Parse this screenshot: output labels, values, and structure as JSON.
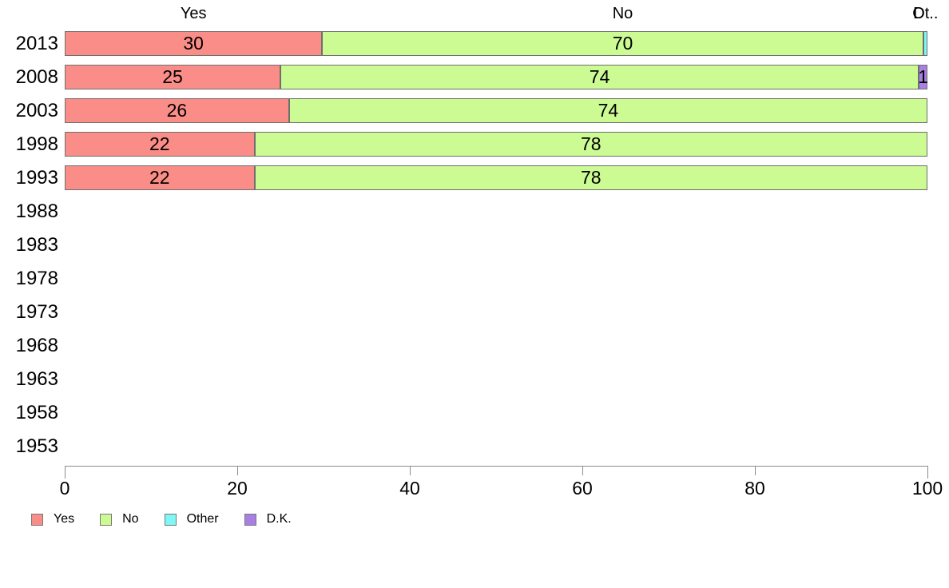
{
  "chart_data": {
    "type": "bar",
    "orientation": "horizontal",
    "stacked": true,
    "title": "",
    "xlabel": "",
    "ylabel": "",
    "xlim": [
      0,
      100
    ],
    "x_ticks": [
      "0",
      "20",
      "40",
      "60",
      "80",
      "100"
    ],
    "grid": false,
    "categories": [
      "2013",
      "2008",
      "2003",
      "1998",
      "1993",
      "1988",
      "1983",
      "1978",
      "1973",
      "1968",
      "1963",
      "1958",
      "1953"
    ],
    "series": [
      {
        "name": "Yes",
        "color": "#fb8d88",
        "values": [
          30,
          25,
          26,
          22,
          22,
          null,
          null,
          null,
          null,
          null,
          null,
          null,
          null
        ],
        "labels": [
          "30",
          "25",
          "26",
          "22",
          "22",
          "",
          "",
          "",
          "",
          "",
          "",
          "",
          ""
        ]
      },
      {
        "name": "No",
        "color": "#ccfb94",
        "values": [
          70,
          74,
          74,
          78,
          78,
          null,
          null,
          null,
          null,
          null,
          null,
          null,
          null
        ],
        "labels": [
          "70",
          "74",
          "74",
          "78",
          "78",
          "",
          "",
          "",
          "",
          "",
          "",
          "",
          ""
        ]
      },
      {
        "name": "Other",
        "color": "#80f6f6",
        "values": [
          0.5,
          0,
          0,
          0,
          0,
          null,
          null,
          null,
          null,
          null,
          null,
          null,
          null
        ],
        "labels": [
          "",
          "",
          "",
          "",
          "",
          "",
          "",
          "",
          "",
          "",
          "",
          "",
          ""
        ]
      },
      {
        "name": "D.K.",
        "color": "#a97fe3",
        "values": [
          0,
          1,
          0,
          0,
          0,
          null,
          null,
          null,
          null,
          null,
          null,
          null,
          null
        ],
        "labels": [
          "",
          "1",
          "",
          "",
          "",
          "",
          "",
          "",
          "",
          "",
          "",
          "",
          ""
        ]
      }
    ],
    "column_headers": [
      {
        "series": "Yes",
        "text": "Yes"
      },
      {
        "series": "No",
        "text": "No"
      },
      {
        "series": "Other",
        "text": "Ot.."
      },
      {
        "series": "D.K.",
        "text": "D"
      }
    ],
    "legend": {
      "position": "bottom-left",
      "items": [
        {
          "label": "Yes",
          "color": "#fb8d88"
        },
        {
          "label": "No",
          "color": "#ccfb94"
        },
        {
          "label": "Other",
          "color": "#80f6f6"
        },
        {
          "label": "D.K.",
          "color": "#a97fe3"
        }
      ]
    },
    "colors": {
      "segment_border": "#6f6f6f",
      "axis": "#8c8c8c",
      "text": "#000000",
      "background": "#ffffff"
    }
  }
}
